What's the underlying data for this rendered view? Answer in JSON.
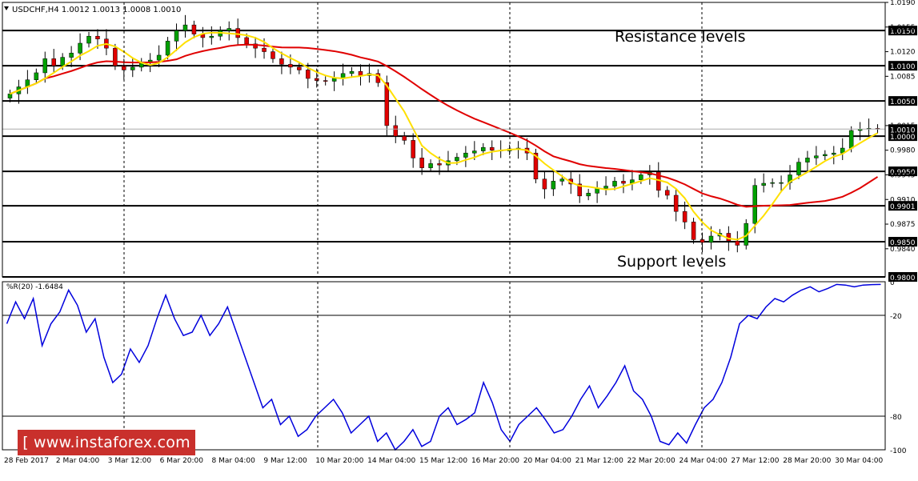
{
  "chart_data": {
    "type": "candlestick",
    "header": {
      "symbol_info": "USDCHF,H4  1.0012 1.0013 1.0008 1.0010"
    },
    "indicator_header": "%R(20) -1.6484",
    "annotations": {
      "resistance": "Resistance levels",
      "support": "Support levels"
    },
    "price_ylim": [
      0.98,
      1.019
    ],
    "price_axis_ticks": [
      {
        "v": 1.019,
        "l": "1.0190"
      },
      {
        "v": 1.0155,
        "l": "1.0155"
      },
      {
        "v": 1.012,
        "l": "1.0120"
      },
      {
        "v": 1.0085,
        "l": "1.0085"
      },
      {
        "v": 1.0015,
        "l": "1.0015"
      },
      {
        "v": 0.998,
        "l": "0.9980"
      },
      {
        "v": 0.9945,
        "l": "0.9945"
      },
      {
        "v": 0.991,
        "l": "0.9910"
      },
      {
        "v": 0.9875,
        "l": "0.9875"
      },
      {
        "v": 0.984,
        "l": "0.9840"
      }
    ],
    "levels": [
      {
        "v": 1.015,
        "l": "1.0150"
      },
      {
        "v": 1.01,
        "l": "1.0100"
      },
      {
        "v": 1.005,
        "l": "1.0050"
      },
      {
        "v": 1.0,
        "l": "1.0000"
      },
      {
        "v": 0.995,
        "l": "0.9950"
      },
      {
        "v": 0.9901,
        "l": "0.9901"
      },
      {
        "v": 0.985,
        "l": "0.9850"
      },
      {
        "v": 0.98,
        "l": "0.9800"
      }
    ],
    "current_price": {
      "v": 1.001,
      "l": "1.0010"
    },
    "wr_ylim": [
      -100,
      0
    ],
    "wr_axis": [
      {
        "v": 0,
        "l": "0"
      },
      {
        "v": -20,
        "l": "-20"
      },
      {
        "v": -80,
        "l": "-80"
      },
      {
        "v": -100,
        "l": "-100"
      }
    ],
    "wr_levels": [
      -20,
      -80
    ],
    "x_labels": [
      "28 Feb 2017",
      "2 Mar 04:00",
      "3 Mar 12:00",
      "6 Mar 20:00",
      "8 Mar 04:00",
      "9 Mar 12:00",
      "10 Mar 20:00",
      "14 Mar 04:00",
      "15 Mar 12:00",
      "16 Mar 20:00",
      "20 Mar 04:00",
      "21 Mar 12:00",
      "22 Mar 20:00",
      "24 Mar 04:00",
      "27 Mar 12:00",
      "28 Mar 20:00",
      "30 Mar 04:00"
    ],
    "colors": {
      "bull": "#00a000",
      "bear": "#e00000",
      "ma_fast": "#ffe000",
      "ma_slow": "#e00000",
      "wr_line": "#0000dd",
      "grid": "#000000"
    },
    "closes": [
      1.006,
      1.007,
      1.008,
      1.009,
      1.011,
      1.01,
      1.0112,
      1.0118,
      1.0132,
      1.0142,
      1.0138,
      1.0125,
      1.01,
      1.0094,
      1.0098,
      1.0105,
      1.0108,
      1.0115,
      1.0135,
      1.015,
      1.0158,
      1.0145,
      1.014,
      1.0142,
      1.015,
      1.0153,
      1.014,
      1.0131,
      1.0125,
      1.012,
      1.011,
      1.0102,
      1.0098,
      1.0094,
      1.0082,
      1.0079,
      1.0078,
      1.0082,
      1.0089,
      1.0092,
      1.0086,
      1.0089,
      1.0076,
      1.0015,
      1.0,
      0.9994,
      0.9969,
      0.9955,
      0.9961,
      0.9959,
      0.9965,
      0.997,
      0.9976,
      0.9979,
      0.9984,
      0.998,
      0.9979,
      0.9982,
      0.9983,
      0.9976,
      0.9939,
      0.9925,
      0.9936,
      0.9939,
      0.9932,
      0.9915,
      0.9919,
      0.9926,
      0.9929,
      0.9936,
      0.9933,
      0.9938,
      0.9945,
      0.9949,
      0.9923,
      0.9916,
      0.9893,
      0.9878,
      0.9853,
      0.9849,
      0.9858,
      0.9862,
      0.9851,
      0.9845,
      0.9876,
      0.993,
      0.9933,
      0.9934,
      0.9934,
      0.9945,
      0.9963,
      0.9969,
      0.9972,
      0.9974,
      0.9976,
      0.9983,
      1.0008,
      1.001,
      1.0011,
      1.001
    ],
    "opens": [
      1.0054,
      1.006,
      1.007,
      1.008,
      1.009,
      1.011,
      1.01,
      1.0112,
      1.0118,
      1.0132,
      1.0142,
      1.0138,
      1.0125,
      1.01,
      1.0094,
      1.0098,
      1.0105,
      1.0108,
      1.0115,
      1.0135,
      1.015,
      1.0158,
      1.0145,
      1.014,
      1.0142,
      1.015,
      1.0153,
      1.014,
      1.0131,
      1.0125,
      1.012,
      1.011,
      1.0102,
      1.0098,
      1.0094,
      1.0082,
      1.0079,
      1.0078,
      1.0082,
      1.0089,
      1.0092,
      1.0086,
      1.0089,
      1.0076,
      1.0015,
      1.0,
      0.9994,
      0.9969,
      0.9955,
      0.9961,
      0.9959,
      0.9965,
      0.997,
      0.9976,
      0.9979,
      0.9984,
      0.998,
      0.9979,
      0.9982,
      0.9983,
      0.9976,
      0.9939,
      0.9925,
      0.9936,
      0.9939,
      0.9932,
      0.9915,
      0.9919,
      0.9926,
      0.9929,
      0.9936,
      0.9933,
      0.9938,
      0.9945,
      0.9949,
      0.9923,
      0.9916,
      0.9893,
      0.9878,
      0.9853,
      0.9849,
      0.9858,
      0.9862,
      0.9851,
      0.9845,
      0.9876,
      0.993,
      0.9933,
      0.9934,
      0.9934,
      0.9945,
      0.9963,
      0.9969,
      0.9972,
      0.9974,
      0.9976,
      0.9983,
      1.0008,
      1.001,
      1.0011
    ],
    "wr": [
      -25,
      -12,
      -22,
      -10,
      -38,
      -25,
      -18,
      -5,
      -14,
      -30,
      -22,
      -45,
      -60,
      -55,
      -40,
      -48,
      -38,
      -22,
      -8,
      -22,
      -32,
      -30,
      -20,
      -32,
      -25,
      -15,
      -30,
      -45,
      -60,
      -75,
      -70,
      -85,
      -80,
      -92,
      -88,
      -80,
      -75,
      -70,
      -78,
      -90,
      -85,
      -80,
      -95,
      -90,
      -100,
      -95,
      -88,
      -98,
      -95,
      -80,
      -75,
      -85,
      -82,
      -78,
      -60,
      -72,
      -88,
      -95,
      -85,
      -80,
      -75,
      -82,
      -90,
      -88,
      -80,
      -70,
      -62,
      -75,
      -68,
      -60,
      -50,
      -65,
      -70,
      -80,
      -95,
      -97,
      -90,
      -96,
      -85,
      -75,
      -70,
      -60,
      -45,
      -25,
      -20,
      -22,
      -15,
      -10,
      -12,
      -8,
      -5,
      -3,
      -6,
      -4,
      -1.6,
      -2,
      -3,
      -2,
      -1.7,
      -1.6
    ]
  },
  "watermark": "[ www.instaforex.com ]"
}
